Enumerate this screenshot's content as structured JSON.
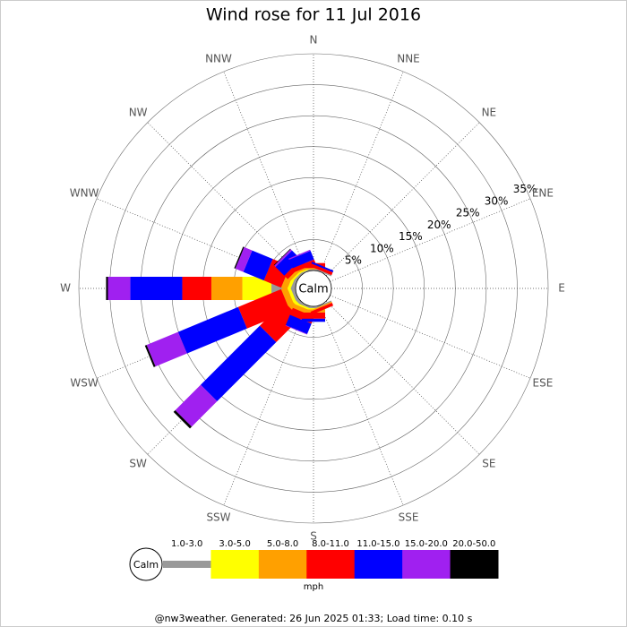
{
  "chart_data": {
    "type": "windrose",
    "title": "Wind rose for 11 Jul 2016",
    "directions": [
      "N",
      "NNE",
      "NE",
      "ENE",
      "E",
      "ESE",
      "SE",
      "SSE",
      "S",
      "SSW",
      "SW",
      "WSW",
      "W",
      "WNW",
      "NW",
      "NNW"
    ],
    "calm_label": "Calm",
    "rlim": [
      0,
      35
    ],
    "rticks": [
      {
        "value": 5,
        "label": "5%"
      },
      {
        "value": 10,
        "label": "10%"
      },
      {
        "value": 15,
        "label": "15%"
      },
      {
        "value": 20,
        "label": "20%"
      },
      {
        "value": 25,
        "label": "25%"
      },
      {
        "value": 30,
        "label": "30%"
      },
      {
        "value": 35,
        "label": "35%"
      }
    ],
    "series": [
      {
        "name": "1.0-3.0",
        "color": "#999999",
        "values": [
          0.2,
          0.2,
          0,
          0,
          0,
          0,
          0,
          0.2,
          0.3,
          0.3,
          0.5,
          0.5,
          3.9,
          0.5,
          0.3,
          0.2
        ]
      },
      {
        "name": "3.0-5.0",
        "color": "#ffff00",
        "values": [
          0,
          0,
          0,
          0,
          0,
          0,
          0,
          0,
          0.2,
          0.3,
          0.5,
          0.5,
          4.7,
          0.5,
          0.3,
          0.2
        ]
      },
      {
        "name": "5.0-8.0",
        "color": "#ffa000",
        "values": [
          0.2,
          0,
          0,
          0,
          0,
          0,
          0,
          0.2,
          0.5,
          0.7,
          1,
          1,
          5,
          1,
          0.5,
          0.3
        ]
      },
      {
        "name": "8.0-11.0",
        "color": "#ff0000",
        "values": [
          0.8,
          0.5,
          0,
          0,
          0,
          0,
          0,
          0.5,
          1,
          1.2,
          5.5,
          7.5,
          4.7,
          3,
          0.8,
          0.7
        ]
      },
      {
        "name": "11.0-15.0",
        "color": "#0000ff",
        "values": [
          0,
          0.3,
          0,
          0,
          0,
          0,
          0,
          0,
          0.5,
          1.8,
          13.5,
          10.5,
          8.4,
          3.6,
          2,
          1.5
        ]
      },
      {
        "name": "15.0-20.0",
        "color": "#a020f0",
        "values": [
          0,
          0,
          0,
          0,
          0,
          0,
          0,
          0,
          0,
          0.1,
          5.8,
          5.5,
          3.6,
          1.4,
          0.3,
          0.2
        ]
      },
      {
        "name": "20.0-50.0",
        "color": "#000000",
        "values": [
          0,
          0,
          0,
          0,
          0,
          0,
          0,
          0,
          0,
          0,
          0.4,
          0.3,
          0.3,
          0.2,
          0.1,
          0
        ]
      }
    ],
    "legend_title": "mph"
  },
  "footer": "@nw3weather. Generated: 26 Jun 2025 01:33; Load time: 0.10 s"
}
